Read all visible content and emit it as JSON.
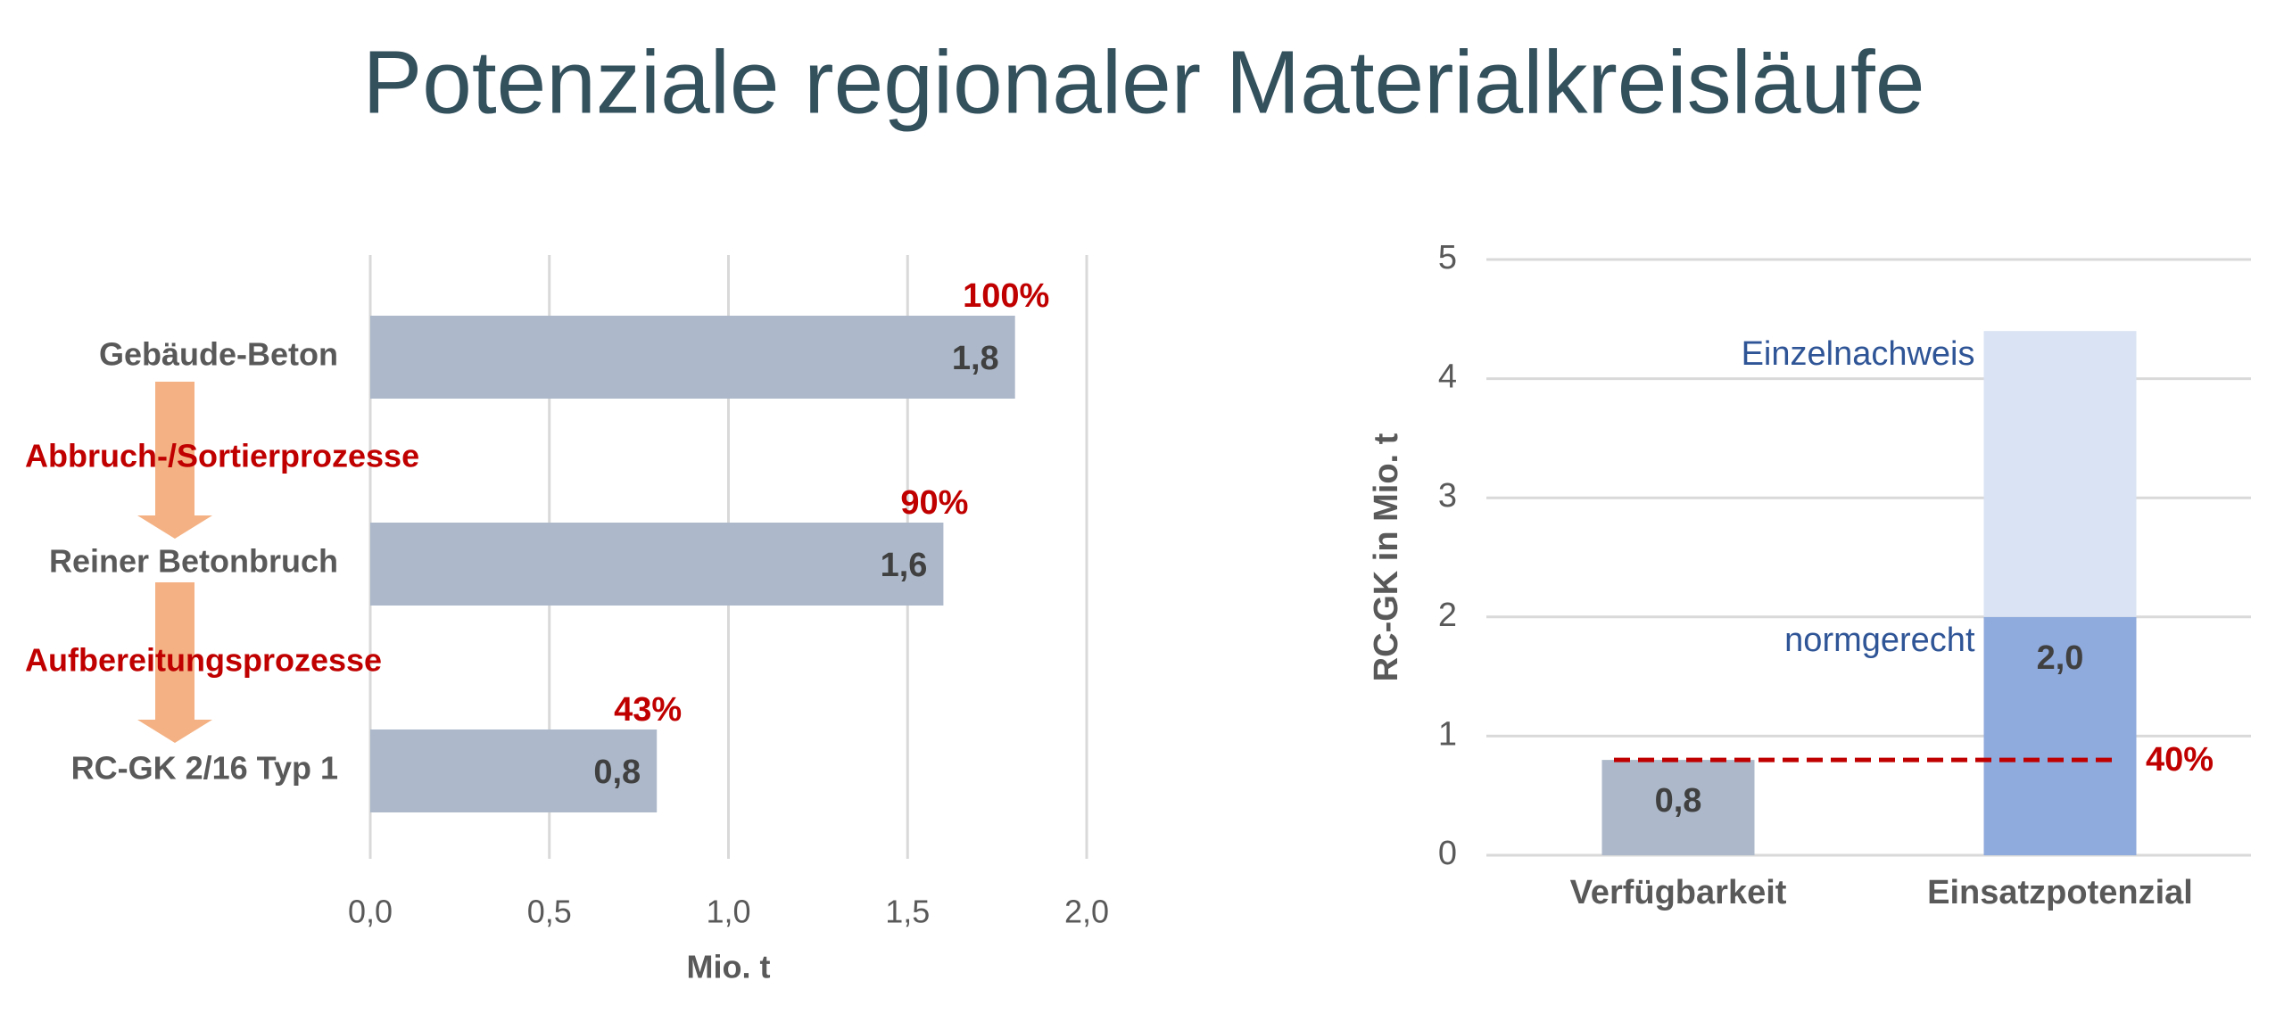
{
  "title": "Potenziale regionaler Materialkreisläufe",
  "chart_data": [
    {
      "type": "hbar",
      "categories": [
        "Gebäude-Beton",
        "Reiner Betonbruch",
        "RC-GK 2/16 Typ 1"
      ],
      "values": [
        1.8,
        1.6,
        0.8
      ],
      "value_labels": [
        "1,8",
        "1,6",
        "0,8"
      ],
      "percent_labels": [
        "100%",
        "90%",
        "43%"
      ],
      "process_labels": [
        "Abbruch-/Sortierprozesse",
        "Aufbereitungsprozesse"
      ],
      "color": "#adb9ca",
      "xlabel": "Mio. t",
      "xlim": [
        0,
        2
      ],
      "xticks": [
        {
          "value": 0,
          "label": "0,0"
        },
        {
          "value": 0.5,
          "label": "0,5"
        },
        {
          "value": 1,
          "label": "1,0"
        },
        {
          "value": 1.5,
          "label": "1,5"
        },
        {
          "value": 2,
          "label": "2,0"
        }
      ],
      "grid": true
    },
    {
      "type": "stacked_bar",
      "categories": [
        "Verfügbarkeit",
        "Einsatzpotenzial"
      ],
      "series": [
        {
          "name": "normgerecht",
          "colors": [
            "#adb9ca",
            "#8faadc"
          ],
          "values": [
            0.8,
            2.0
          ],
          "value_labels": [
            "0,8",
            "2,0"
          ]
        },
        {
          "name": "Einzelnachweis",
          "color": "#dae3f3",
          "values": [
            null,
            2.4
          ]
        }
      ],
      "reference_line": {
        "value": 0.8,
        "label": "40%",
        "color": "#c00000"
      },
      "ylabel": "RC-GK in Mio. t",
      "ylim": [
        0,
        5
      ],
      "yticks": [
        0,
        1,
        2,
        3,
        4,
        5
      ],
      "grid": true
    }
  ]
}
